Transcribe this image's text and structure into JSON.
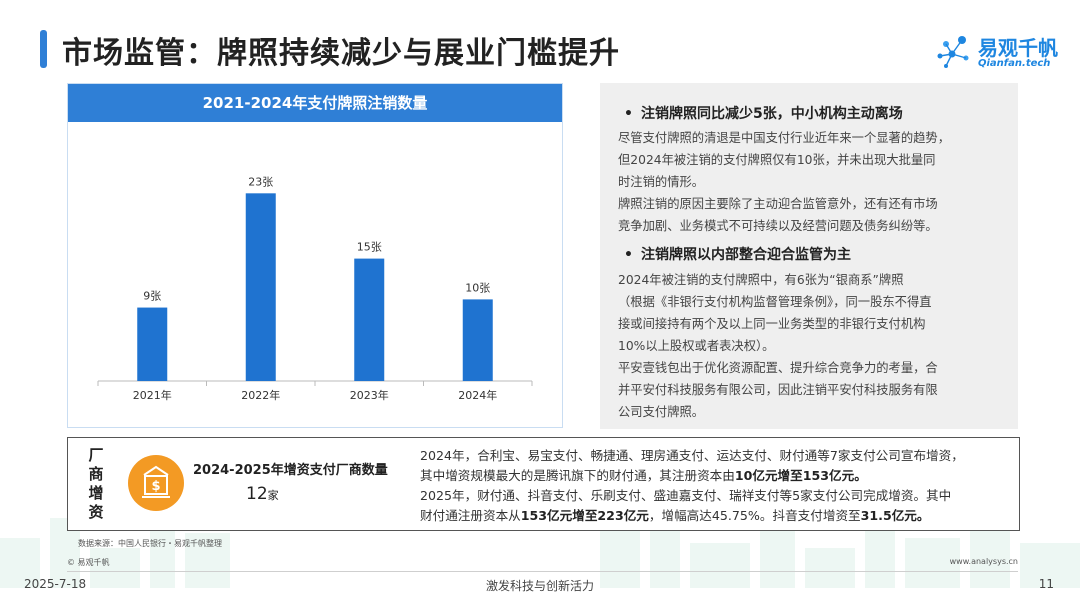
{
  "header": {
    "title": "市场监管：牌照持续减少与展业门槛提升"
  },
  "logo": {
    "name": "易观千帆",
    "sub": "Qianfan.tech"
  },
  "colors": {
    "accent": "#2f7fd6",
    "bar": "#1f73d0",
    "icon_bg": "#f39a24",
    "panel_bg": "#efefef"
  },
  "chart_data": {
    "type": "bar",
    "title": "2021-2024年支付牌照注销数量",
    "categories": [
      "2021年",
      "2022年",
      "2023年",
      "2024年"
    ],
    "values": [
      9,
      23,
      15,
      10
    ],
    "data_labels": [
      "9张",
      "23张",
      "15张",
      "10张"
    ],
    "ylim": [
      0,
      25
    ],
    "grid": false
  },
  "info": {
    "bullet1_title": "注销牌照同比减少5张，中小机构主动离场",
    "bullet1_lines": [
      "尽管支付牌照的清退是中国支付行业近年来一个显著的趋势，",
      "但2024年被注销的支付牌照仅有10张，并未出现大批量同",
      "时注销的情形。",
      "牌照注销的原因主要除了主动迎合监管意外，还有还有市场",
      "竞争加剧、业务模式不可持续以及经营问题及债务纠纷等。"
    ],
    "bullet2_title": "注销牌照以内部整合迎合监管为主",
    "bullet2_lines": [
      "2024年被注销的支付牌照中，有6张为“银商系”牌照",
      "（根据《非银行支付机构监督管理条例》，同一股东不得直",
      "接或间接持有两个及以上同一业务类型的非银行支付机构",
      "10%以上股权或者表决权）。",
      "平安壹钱包出于优化资源配置、提升综合竞争力的考量，合",
      "并平安付科技服务有限公司，因此注销平安付科技服务有限",
      "公司支付牌照。"
    ]
  },
  "invest": {
    "vertical_label": [
      "厂",
      "商",
      "增",
      "资"
    ],
    "label": "2024-2025年增资支付厂商数量",
    "number": "12",
    "unit": "家",
    "line1": "2024年，合利宝、易宝支付、畅捷通、理房通支付、运达支付、财付通等7家支付公司宣布增资，",
    "line2_a": "其中增资规模最大的是腾讯旗下的财付通，其注册资本由",
    "line2_b": "10亿元增至153亿元。",
    "line3": "2025年，财付通、抖音支付、乐刷支付、盛迪嘉支付、瑞祥支付等5家支付公司完成增资。其中",
    "line4_a": "财付通注册资本从",
    "line4_b": "153亿元增至223亿元",
    "line4_c": "，增幅高达45.75%。抖音支付增资至",
    "line4_d": "31.5亿元。"
  },
  "source": "数据来源：中国人民银行・易观千帆整理",
  "copyright": "© 易观千帆",
  "site": "www.analysys.cn",
  "footer": {
    "date": "2025-7-18",
    "center": "激发科技与创新活力",
    "page": "11"
  }
}
